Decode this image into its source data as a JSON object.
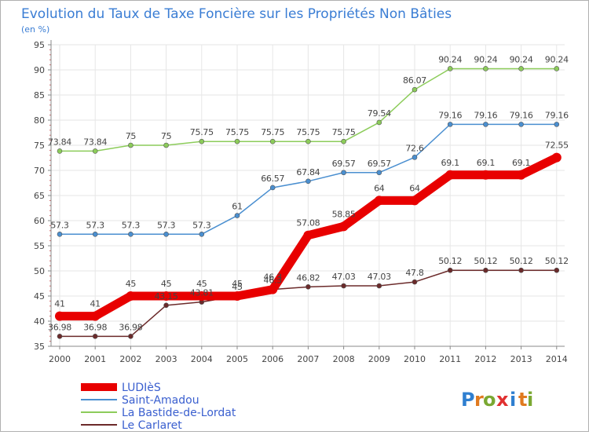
{
  "title": "Evolution du Taux de Taxe Foncière sur les Propriétés Non Bâties",
  "subtitle": "(en %)",
  "brand": {
    "letters": [
      "P",
      "r",
      "o",
      "x",
      "i",
      "t",
      "i"
    ],
    "colors": [
      "#2f7fd0",
      "#e07a1f",
      "#7aa832",
      "#e03030",
      "#2f7fd0",
      "#e07a1f",
      "#7aa832"
    ]
  },
  "colors": {
    "title": "#3a7dd4",
    "legend_text": "#3a5fcf",
    "axis": "#888888",
    "tick_label": "#444444",
    "grid": "#e6e6e6",
    "point_label": "#444444"
  },
  "chart_data": {
    "type": "line",
    "x": [
      "2000",
      "2001",
      "2002",
      "2003",
      "2004",
      "2005",
      "2006",
      "2007",
      "2008",
      "2009",
      "2010",
      "2011",
      "2012",
      "2013",
      "2014"
    ],
    "ylim": [
      35,
      95
    ],
    "yticks": [
      35,
      40,
      45,
      50,
      55,
      60,
      65,
      70,
      75,
      80,
      85,
      90,
      95
    ],
    "grid": true,
    "legend_position": "bottom-left",
    "series": [
      {
        "name": "LUDIèS",
        "color": "#e80000",
        "emphasis": true,
        "values": [
          41,
          41,
          45,
          45,
          45,
          45,
          46.3,
          57.08,
          58.85,
          64,
          64,
          69.1,
          69.1,
          69.1,
          72.55
        ],
        "labels": [
          "41",
          "41",
          "45",
          "45",
          "45",
          "45",
          "46.3",
          "57.08",
          "58.85",
          "64",
          "64",
          "69.1",
          "69.1",
          "69.1",
          "72.55"
        ]
      },
      {
        "name": "Saint-Amadou",
        "color": "#4a8fd0",
        "emphasis": false,
        "values": [
          57.3,
          57.3,
          57.3,
          57.3,
          57.3,
          61,
          66.57,
          67.84,
          69.57,
          69.57,
          72.6,
          79.16,
          79.16,
          79.16,
          79.16
        ],
        "labels": [
          "57.3",
          "57.3",
          "57.3",
          "57.3",
          "57.3",
          "61",
          "66.57",
          "67.84",
          "69.57",
          "69.57",
          "72.6",
          "79.16",
          "79.16",
          "79.16",
          "79.16"
        ]
      },
      {
        "name": "La Bastide-de-Lordat",
        "color": "#8ccc5a",
        "emphasis": false,
        "values": [
          73.84,
          73.84,
          75,
          75,
          75.75,
          75.75,
          75.75,
          75.75,
          75.75,
          79.54,
          86.07,
          90.24,
          90.24,
          90.24,
          90.24
        ],
        "labels": [
          "73.84",
          "73.84",
          "75",
          "75",
          "75.75",
          "75.75",
          "75.75",
          "75.75",
          "75.75",
          "79.54",
          "86.07",
          "90.24",
          "90.24",
          "90.24",
          "90.24"
        ]
      },
      {
        "name": "Le Carlaret",
        "color": "#6b2a2a",
        "emphasis": false,
        "values": [
          36.98,
          36.98,
          36.98,
          43.15,
          43.81,
          45,
          46.3,
          46.82,
          47.03,
          47.03,
          47.8,
          50.12,
          50.12,
          50.12,
          50.12
        ],
        "labels": [
          "36.98",
          "36.98",
          "36.98",
          "43.15",
          "43.81",
          "45",
          "46.3",
          "46.82",
          "47.03",
          "47.03",
          "47.8",
          "50.12",
          "50.12",
          "50.12",
          "50.12"
        ]
      }
    ]
  }
}
